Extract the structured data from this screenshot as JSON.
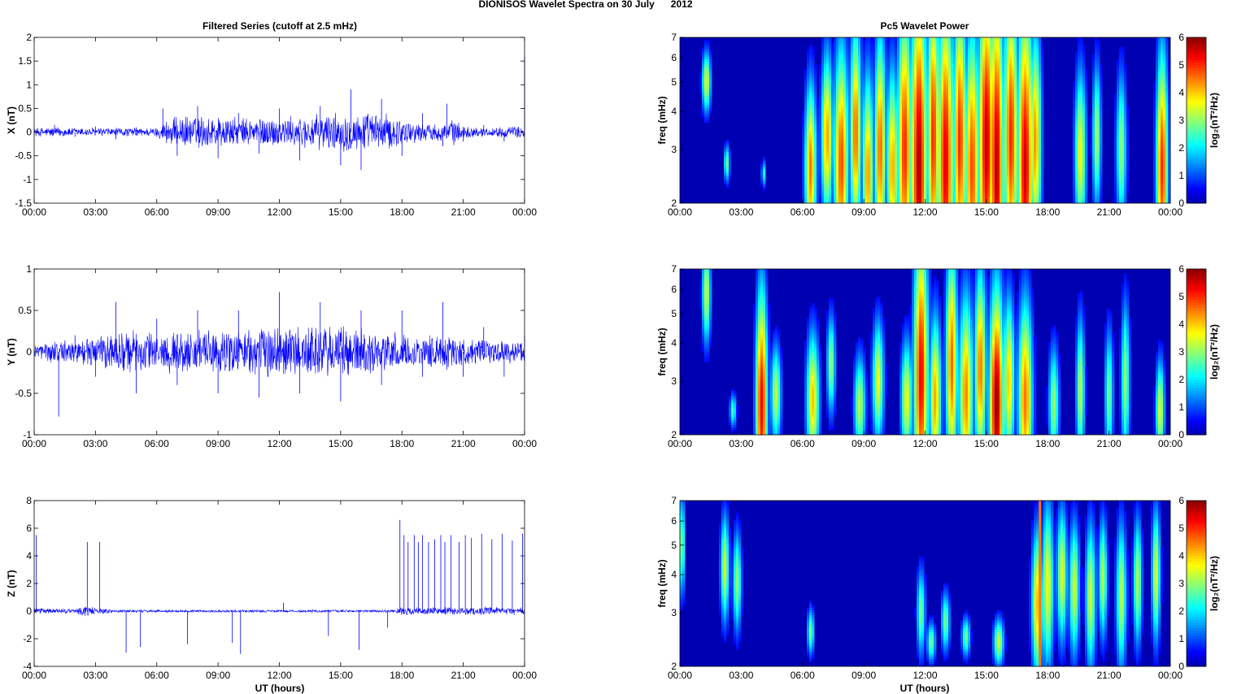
{
  "figure_title": "DIONISOS Wavelet Spectra on 30 July      2012",
  "left_title": "Filtered Series (cutoff at 2.5 mHz)",
  "right_title": "Pc5 Wavelet Power",
  "xlabel": "UT (hours)",
  "time_ticks": [
    "00:00",
    "03:00",
    "06:00",
    "09:00",
    "12:00",
    "15:00",
    "18:00",
    "21:00",
    "00:00"
  ],
  "colors": {
    "trace": "#0000ff",
    "background": "#00008f"
  },
  "chart_data": [
    {
      "type": "line",
      "ylabel": "X (nT)",
      "xlim": [
        0,
        24
      ],
      "ylim": [
        -1.5,
        2
      ],
      "yticks": [
        -1.5,
        -1,
        -0.5,
        0,
        0.5,
        1,
        1.5,
        2
      ],
      "ytick_labels": [
        "-1.5",
        "-1",
        "-0.5",
        "0",
        "0.5",
        "1",
        "1.5",
        "2"
      ],
      "series": [
        {
          "x": [
            0,
            1,
            2,
            3,
            4,
            5,
            6,
            6.3,
            7,
            8,
            9,
            10,
            11,
            12,
            13,
            14,
            15,
            15.5,
            16,
            17,
            18,
            19,
            20,
            20.2,
            21,
            22,
            23,
            24
          ],
          "y": [
            0,
            0.15,
            -0.1,
            0.12,
            -0.15,
            0.1,
            -0.1,
            0.5,
            -0.5,
            0.55,
            -0.55,
            0.4,
            -0.45,
            0.5,
            -0.6,
            0.55,
            -0.7,
            0.9,
            -0.8,
            0.7,
            -0.5,
            0.4,
            -0.3,
            0.6,
            -0.2,
            0.15,
            -0.2,
            1.6
          ]
        }
      ],
      "envelope": {
        "hours": [
          0,
          1,
          2,
          3,
          4,
          5,
          6,
          6.5,
          7,
          8,
          9,
          10,
          11,
          12,
          13,
          14,
          15,
          16,
          17,
          17.5,
          18,
          19,
          20,
          20.5,
          21,
          22,
          23,
          24
        ],
        "amplitude": [
          0.1,
          0.12,
          0.1,
          0.1,
          0.1,
          0.1,
          0.1,
          0.3,
          0.35,
          0.38,
          0.38,
          0.32,
          0.35,
          0.35,
          0.35,
          0.4,
          0.45,
          0.45,
          0.42,
          0.4,
          0.3,
          0.2,
          0.2,
          0.3,
          0.15,
          0.1,
          0.12,
          0.15
        ]
      }
    },
    {
      "type": "line",
      "ylabel": "Y (nT)",
      "xlim": [
        0,
        24
      ],
      "ylim": [
        -1,
        1
      ],
      "yticks": [
        -1,
        -0.5,
        0,
        0.5,
        1
      ],
      "ytick_labels": [
        "-1",
        "-0.5",
        "0",
        "0.5",
        "1"
      ],
      "series": [
        {
          "x": [
            0,
            1.2,
            2,
            3,
            4,
            5,
            6,
            7,
            8,
            9,
            10,
            11,
            12,
            13,
            14,
            15,
            16,
            17,
            18,
            19,
            20,
            21,
            22,
            23,
            24
          ],
          "y": [
            0,
            -0.78,
            0.2,
            -0.3,
            0.6,
            -0.5,
            0.4,
            -0.4,
            0.5,
            -0.5,
            0.5,
            -0.55,
            0.72,
            -0.5,
            0.6,
            -0.6,
            0.5,
            -0.4,
            0.5,
            -0.3,
            0.6,
            -0.3,
            0.3,
            -0.3,
            0.2
          ]
        }
      ],
      "envelope": {
        "hours": [
          0,
          1,
          2,
          3,
          4,
          5,
          6,
          7,
          8,
          9,
          10,
          11,
          12,
          13,
          14,
          15,
          16,
          17,
          18,
          19,
          20,
          21,
          22,
          23,
          24
        ],
        "amplitude": [
          0.1,
          0.15,
          0.15,
          0.2,
          0.28,
          0.28,
          0.25,
          0.28,
          0.28,
          0.28,
          0.3,
          0.32,
          0.35,
          0.35,
          0.35,
          0.35,
          0.32,
          0.28,
          0.22,
          0.2,
          0.25,
          0.18,
          0.15,
          0.15,
          0.15
        ]
      }
    },
    {
      "type": "line",
      "ylabel": "Z (nT)",
      "xlim": [
        0,
        24
      ],
      "ylim": [
        -4,
        8
      ],
      "yticks": [
        -4,
        -2,
        0,
        2,
        4,
        6,
        8
      ],
      "ytick_labels": [
        "-4",
        "-2",
        "0",
        "2",
        "4",
        "6",
        "8"
      ],
      "spikes": [
        [
          0.1,
          5.5
        ],
        [
          2.6,
          5
        ],
        [
          3.2,
          5
        ],
        [
          4.5,
          -3
        ],
        [
          5.2,
          -2.6
        ],
        [
          7.5,
          -2.4
        ],
        [
          9.7,
          -2.3
        ],
        [
          10.1,
          -3.1
        ],
        [
          12.2,
          0.6
        ],
        [
          14.4,
          -1.8
        ],
        [
          15.9,
          -2.8
        ],
        [
          17.3,
          -1.2
        ],
        [
          17.9,
          6.6
        ],
        [
          18.1,
          5.5
        ],
        [
          18.3,
          5
        ],
        [
          18.6,
          5.5
        ],
        [
          18.8,
          5
        ],
        [
          19,
          5.5
        ],
        [
          19.3,
          5
        ],
        [
          19.6,
          5.2
        ],
        [
          19.9,
          5.5
        ],
        [
          20.1,
          5
        ],
        [
          20.4,
          5.5
        ],
        [
          20.8,
          5
        ],
        [
          21.1,
          5.5
        ],
        [
          21.4,
          5.3
        ],
        [
          21.9,
          5.6
        ],
        [
          22.4,
          5.2
        ],
        [
          22.9,
          5.6
        ],
        [
          23.4,
          5.1
        ],
        [
          23.9,
          5.6
        ]
      ],
      "envelope": {
        "hours": [
          0,
          1,
          2,
          2.5,
          3,
          4,
          6,
          9,
          12,
          15,
          17.5,
          18,
          20,
          22,
          24
        ],
        "amplitude": [
          0.25,
          0.2,
          0.2,
          0.5,
          0.25,
          0.12,
          0.1,
          0.1,
          0.1,
          0.1,
          0.1,
          0.3,
          0.3,
          0.3,
          0.3
        ]
      }
    },
    {
      "type": "heatmap",
      "ylabel": "freq (mHz)",
      "colorbar_label": "log₂(nT²/Hz)",
      "xlim": [
        0,
        24
      ],
      "ylim": [
        2,
        7
      ],
      "yscale": "log",
      "yticks": [
        2,
        3,
        4,
        5,
        6,
        7
      ],
      "ytick_labels": [
        "2",
        "3",
        "4",
        "5",
        "6",
        "7"
      ],
      "clim": [
        0,
        6
      ],
      "cticks": [
        "0",
        "1",
        "2",
        "3",
        "4",
        "5",
        "6"
      ],
      "blobs": [
        [
          1.3,
          5,
          0.9,
          0.15,
          3.5
        ],
        [
          2.3,
          2.7,
          0.55,
          0.1,
          2.8
        ],
        [
          4.1,
          2.5,
          0.4,
          0.08,
          2.2
        ],
        [
          6.4,
          2.6,
          2.5,
          0.2,
          4.5
        ],
        [
          7.2,
          3.3,
          2.5,
          0.2,
          4.2
        ],
        [
          7.9,
          2.7,
          3.5,
          0.25,
          4.8
        ],
        [
          8.6,
          3.4,
          3.2,
          0.2,
          4.6
        ],
        [
          9.2,
          2.5,
          3,
          0.2,
          4.3
        ],
        [
          9.8,
          3,
          3.5,
          0.2,
          4.6
        ],
        [
          10.4,
          2.6,
          3,
          0.2,
          4.2
        ],
        [
          11.0,
          3.0,
          4.2,
          0.25,
          5
        ],
        [
          11.7,
          2.6,
          5.5,
          0.28,
          5.8
        ],
        [
          12.4,
          3.3,
          4.5,
          0.22,
          5
        ],
        [
          13.0,
          2.7,
          5,
          0.28,
          5.4
        ],
        [
          13.7,
          3.2,
          4.3,
          0.22,
          5
        ],
        [
          14.3,
          2.6,
          4.2,
          0.25,
          4.8
        ],
        [
          15.0,
          3.1,
          5,
          0.28,
          5.6
        ],
        [
          15.5,
          2.6,
          5.5,
          0.25,
          5.7
        ],
        [
          16.2,
          3.3,
          4.5,
          0.25,
          5
        ],
        [
          16.9,
          2.6,
          5,
          0.28,
          5.5
        ],
        [
          17.4,
          3.2,
          3.3,
          0.2,
          4.3
        ],
        [
          19.6,
          2.9,
          2.5,
          0.2,
          3.6
        ],
        [
          20.4,
          3.3,
          2.2,
          0.15,
          3.1
        ],
        [
          21.6,
          3,
          2.3,
          0.18,
          3
        ],
        [
          23.6,
          2.6,
          3.5,
          0.2,
          5
        ]
      ]
    },
    {
      "type": "heatmap",
      "ylabel": "freq (mHz)",
      "colorbar_label": "log₂(nT²/Hz)",
      "xlim": [
        0,
        24
      ],
      "ylim": [
        2,
        7
      ],
      "yscale": "log",
      "yticks": [
        2,
        3,
        4,
        5,
        6,
        7
      ],
      "ytick_labels": [
        "2",
        "3",
        "4",
        "5",
        "6",
        "7"
      ],
      "clim": [
        0,
        6
      ],
      "cticks": [
        "0",
        "1",
        "2",
        "3",
        "4",
        "5",
        "6"
      ],
      "blobs": [
        [
          1.3,
          5.8,
          1.5,
          0.15,
          3.3
        ],
        [
          2.6,
          2.4,
          0.5,
          0.12,
          2.5
        ],
        [
          4.0,
          2.5,
          3.5,
          0.2,
          5.3
        ],
        [
          4.7,
          2.7,
          1.5,
          0.18,
          3.3
        ],
        [
          6.5,
          2.6,
          2,
          0.22,
          4
        ],
        [
          7.4,
          3.4,
          1.5,
          0.15,
          3
        ],
        [
          8.8,
          2.5,
          1.5,
          0.2,
          3.2
        ],
        [
          9.7,
          3,
          1.8,
          0.2,
          3.6
        ],
        [
          11.1,
          2.6,
          1.8,
          0.2,
          3.6
        ],
        [
          11.8,
          3.1,
          4.5,
          0.25,
          5.3
        ],
        [
          12.5,
          2.6,
          2.5,
          0.2,
          4.2
        ],
        [
          13.3,
          3.4,
          3.5,
          0.2,
          4.6
        ],
        [
          14.0,
          2.7,
          3,
          0.25,
          4.4
        ],
        [
          14.7,
          3.3,
          3,
          0.2,
          4.5
        ],
        [
          15.5,
          2.5,
          3.5,
          0.25,
          5.9
        ],
        [
          16.1,
          3,
          2.5,
          0.2,
          4
        ],
        [
          16.9,
          2.6,
          3,
          0.25,
          4.5
        ],
        [
          18.3,
          2.5,
          1.8,
          0.18,
          3
        ],
        [
          19.6,
          2.8,
          2.2,
          0.15,
          3.2
        ],
        [
          21.0,
          2.7,
          2,
          0.15,
          2.8
        ],
        [
          21.8,
          3,
          2.4,
          0.15,
          3
        ],
        [
          23.5,
          2.4,
          1.5,
          0.15,
          3.5
        ]
      ]
    },
    {
      "type": "heatmap",
      "ylabel": "freq (mHz)",
      "colorbar_label": "log₂(nT²/Hz)",
      "xlim": [
        0,
        24
      ],
      "ylim": [
        2,
        7
      ],
      "yscale": "log",
      "yticks": [
        2,
        3,
        4,
        5,
        6,
        7
      ],
      "ytick_labels": [
        "2",
        "3",
        "4",
        "5",
        "6",
        "7"
      ],
      "clim": [
        0,
        6
      ],
      "cticks": [
        "0",
        "1",
        "2",
        "3",
        "4",
        "5",
        "6"
      ],
      "blobs": [
        [
          0.1,
          5,
          1.5,
          0.1,
          3
        ],
        [
          2.2,
          4.2,
          1.6,
          0.15,
          3.4
        ],
        [
          2.8,
          3.8,
          1.5,
          0.15,
          3
        ],
        [
          6.4,
          2.6,
          0.7,
          0.12,
          2.8
        ],
        [
          11.8,
          3,
          1.3,
          0.15,
          2.8
        ],
        [
          12.3,
          2.4,
          0.6,
          0.15,
          2.8
        ],
        [
          13.0,
          2.8,
          0.9,
          0.15,
          2.8
        ],
        [
          14.0,
          2.5,
          0.6,
          0.15,
          2.8
        ],
        [
          15.6,
          2.4,
          0.7,
          0.18,
          3.4
        ],
        [
          17.5,
          3.2,
          2.2,
          0.2,
          4
        ],
        [
          18.0,
          3.7,
          2.5,
          0.2,
          3.6
        ],
        [
          18.7,
          4,
          2,
          0.18,
          3.5
        ],
        [
          19.3,
          3.6,
          2,
          0.18,
          3.4
        ],
        [
          20.1,
          3.4,
          2.2,
          0.18,
          3.4
        ],
        [
          20.7,
          3.9,
          1.8,
          0.15,
          3.2
        ],
        [
          21.6,
          3.4,
          2.2,
          0.18,
          3.3
        ],
        [
          22.4,
          3.8,
          1.9,
          0.15,
          3.2
        ],
        [
          23.3,
          4,
          2,
          0.15,
          3.5
        ]
      ],
      "vline": {
        "x": 17.6,
        "value": 4.5
      }
    }
  ]
}
